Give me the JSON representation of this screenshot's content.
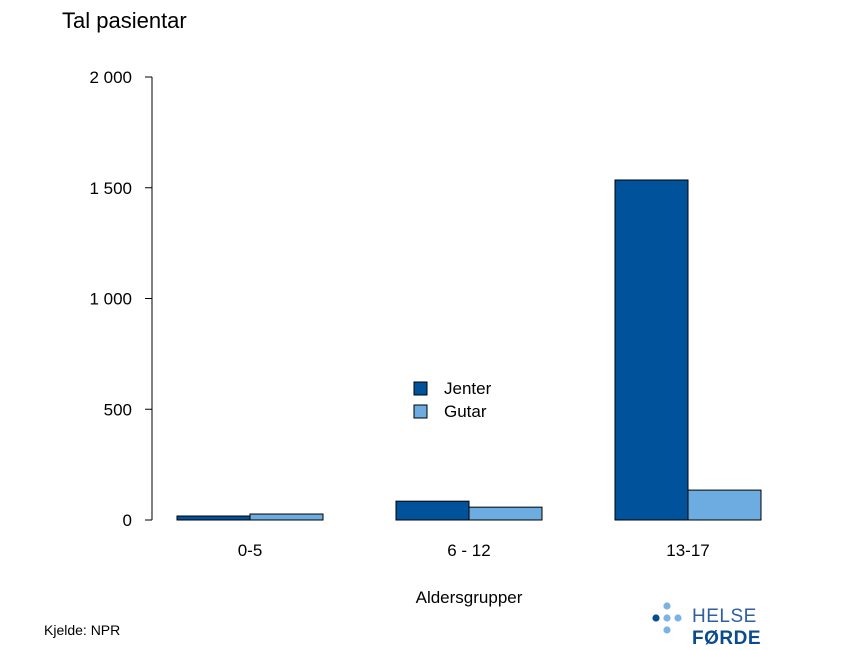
{
  "chart_data": {
    "type": "bar",
    "title": "Tal pasientar",
    "xlabel": "Aldersgrupper",
    "ylabel": "",
    "categories": [
      "0-5",
      "6 - 12",
      "13-17"
    ],
    "series": [
      {
        "name": "Jenter",
        "values": [
          18,
          85,
          1535
        ],
        "color": "#00539B"
      },
      {
        "name": "Gutar",
        "values": [
          27,
          58,
          135
        ],
        "color": "#6CACE0"
      }
    ],
    "ylim": [
      0,
      2000
    ],
    "yticks": [
      0,
      500,
      1000,
      1500,
      2000
    ],
    "ytick_labels": [
      "0",
      "500",
      "1 000",
      "1 500",
      "2 000"
    ],
    "legend_position": "center",
    "grid": false
  },
  "source": "Kjelde: NPR",
  "logo": {
    "word1": "HELSE",
    "word2": "FØRDE",
    "icon": "dots-cross-icon",
    "colors": {
      "dark": "#0A4B8F",
      "light": "#7DB3E3"
    }
  }
}
